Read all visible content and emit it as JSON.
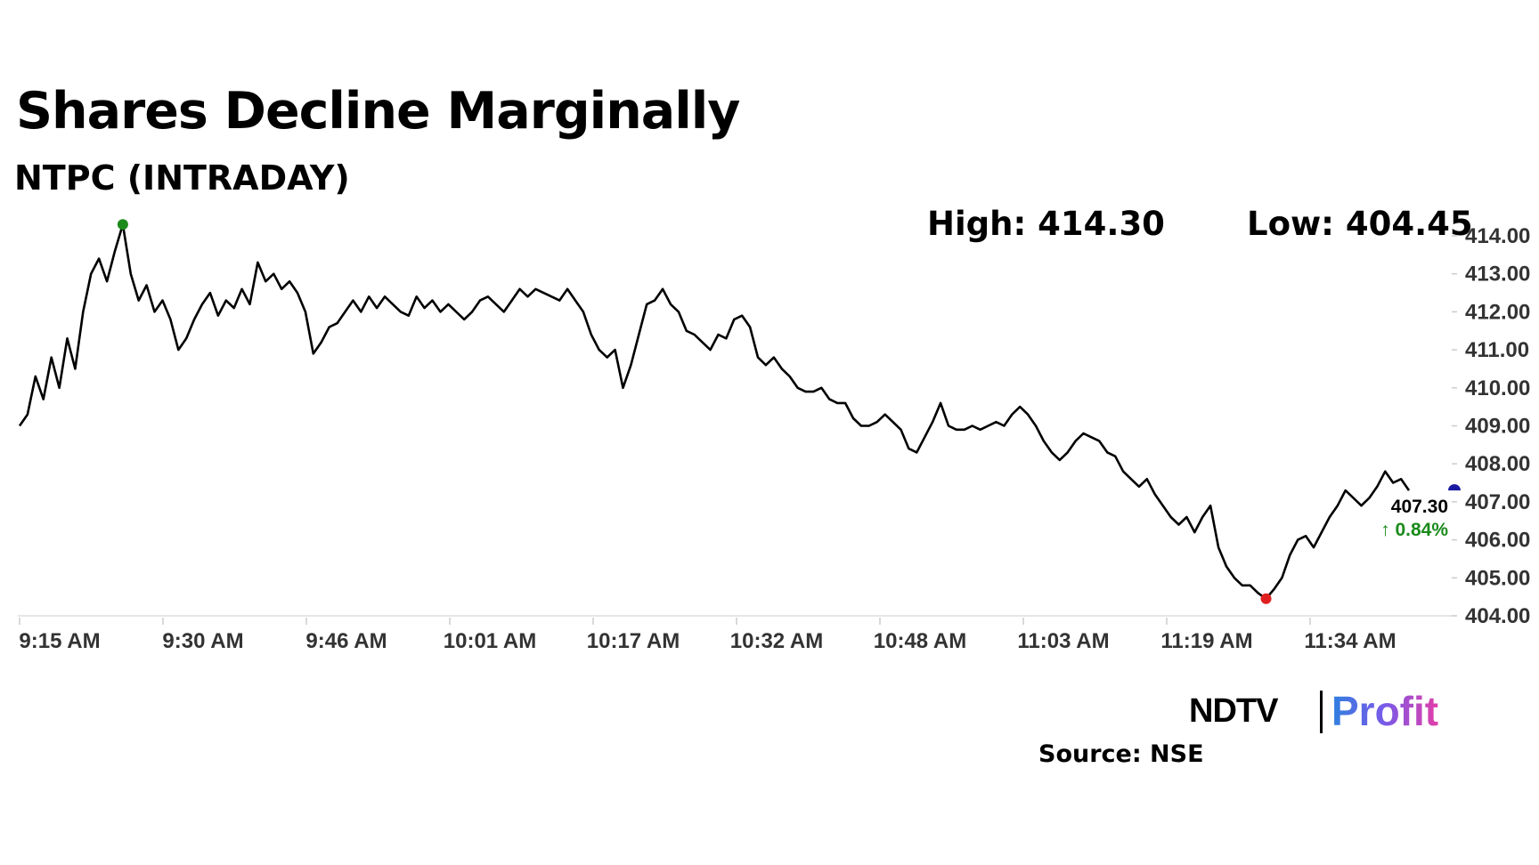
{
  "header": {
    "title": "Shares Decline Marginally",
    "subtitle": "NTPC (INTRADAY)"
  },
  "stats": {
    "high_label": "High: 414.30",
    "low_label": "Low: 404.45"
  },
  "last": {
    "price": "407.30",
    "change": "↑ 0.84%",
    "change_color": "#1a8a1a"
  },
  "colors": {
    "line": "#000000",
    "high_marker": "#1a8a1a",
    "low_marker": "#e02020",
    "last_marker": "#1a1aa0"
  },
  "footer": {
    "source": "Source: NSE",
    "logo_ndtv": "NDTV",
    "logo_profit": "Profit"
  },
  "chart_data": {
    "type": "line",
    "title": "Shares Decline Marginally",
    "subtitle": "NTPC (INTRADAY)",
    "xlabel": "",
    "ylabel": "",
    "ylim": [
      404.0,
      414.0
    ],
    "grid": false,
    "x_tick_labels": [
      "9:15 AM",
      "9:30 AM",
      "9:46 AM",
      "10:01 AM",
      "10:17 AM",
      "10:32 AM",
      "10:48 AM",
      "11:03 AM",
      "11:19 AM",
      "11:34 AM"
    ],
    "y_tick_labels": [
      "414.00",
      "413.00",
      "412.00",
      "411.00",
      "410.00",
      "409.00",
      "408.00",
      "407.00",
      "406.00",
      "405.00",
      "404.00"
    ],
    "high": 414.3,
    "low": 404.45,
    "last": 407.3,
    "change_pct": 0.84,
    "series": [
      {
        "values": [
          [
            0,
            409.0
          ],
          [
            1,
            409.3
          ],
          [
            2,
            410.3
          ],
          [
            3,
            409.7
          ],
          [
            4,
            410.8
          ],
          [
            5,
            410.0
          ],
          [
            6,
            411.3
          ],
          [
            7,
            410.5
          ],
          [
            8,
            412.0
          ],
          [
            9,
            413.0
          ],
          [
            10,
            413.4
          ],
          [
            11,
            412.8
          ],
          [
            12,
            413.6
          ],
          [
            13,
            414.3
          ],
          [
            14,
            413.0
          ],
          [
            15,
            412.3
          ],
          [
            16,
            412.7
          ],
          [
            17,
            412.0
          ],
          [
            18,
            412.3
          ],
          [
            19,
            411.8
          ],
          [
            20,
            411.0
          ],
          [
            21,
            411.3
          ],
          [
            22,
            411.8
          ],
          [
            23,
            412.2
          ],
          [
            24,
            412.5
          ],
          [
            25,
            411.9
          ],
          [
            26,
            412.3
          ],
          [
            27,
            412.1
          ],
          [
            28,
            412.6
          ],
          [
            29,
            412.2
          ],
          [
            30,
            413.3
          ],
          [
            31,
            412.8
          ],
          [
            32,
            413.0
          ],
          [
            33,
            412.6
          ],
          [
            34,
            412.8
          ],
          [
            35,
            412.5
          ],
          [
            36,
            412.0
          ],
          [
            37,
            410.9
          ],
          [
            38,
            411.2
          ],
          [
            39,
            411.6
          ],
          [
            40,
            411.7
          ],
          [
            41,
            412.0
          ],
          [
            42,
            412.3
          ],
          [
            43,
            412.0
          ],
          [
            44,
            412.4
          ],
          [
            45,
            412.1
          ],
          [
            46,
            412.4
          ],
          [
            47,
            412.2
          ],
          [
            48,
            412.0
          ],
          [
            49,
            411.9
          ],
          [
            50,
            412.4
          ],
          [
            51,
            412.1
          ],
          [
            52,
            412.3
          ],
          [
            53,
            412.0
          ],
          [
            54,
            412.2
          ],
          [
            55,
            412.0
          ],
          [
            56,
            411.8
          ],
          [
            57,
            412.0
          ],
          [
            58,
            412.3
          ],
          [
            59,
            412.4
          ],
          [
            60,
            412.2
          ],
          [
            61,
            412.0
          ],
          [
            62,
            412.3
          ],
          [
            63,
            412.6
          ],
          [
            64,
            412.4
          ],
          [
            65,
            412.6
          ],
          [
            66,
            412.5
          ],
          [
            67,
            412.4
          ],
          [
            68,
            412.3
          ],
          [
            69,
            412.6
          ],
          [
            70,
            412.3
          ],
          [
            71,
            412.0
          ],
          [
            72,
            411.4
          ],
          [
            73,
            411.0
          ],
          [
            74,
            410.8
          ],
          [
            75,
            411.0
          ],
          [
            76,
            410.0
          ],
          [
            77,
            410.6
          ],
          [
            78,
            411.4
          ],
          [
            79,
            412.2
          ],
          [
            80,
            412.3
          ],
          [
            81,
            412.6
          ],
          [
            82,
            412.2
          ],
          [
            83,
            412.0
          ],
          [
            84,
            411.5
          ],
          [
            85,
            411.4
          ],
          [
            86,
            411.2
          ],
          [
            87,
            411.0
          ],
          [
            88,
            411.4
          ],
          [
            89,
            411.3
          ],
          [
            90,
            411.8
          ],
          [
            91,
            411.9
          ],
          [
            92,
            411.6
          ],
          [
            93,
            410.8
          ],
          [
            94,
            410.6
          ],
          [
            95,
            410.8
          ],
          [
            96,
            410.5
          ],
          [
            97,
            410.3
          ],
          [
            98,
            410.0
          ],
          [
            99,
            409.9
          ],
          [
            100,
            409.9
          ],
          [
            101,
            410.0
          ],
          [
            102,
            409.7
          ],
          [
            103,
            409.6
          ],
          [
            104,
            409.6
          ],
          [
            105,
            409.2
          ],
          [
            106,
            409.0
          ],
          [
            107,
            409.0
          ],
          [
            108,
            409.1
          ],
          [
            109,
            409.3
          ],
          [
            110,
            409.1
          ],
          [
            111,
            408.9
          ],
          [
            112,
            408.4
          ],
          [
            113,
            408.3
          ],
          [
            114,
            408.7
          ],
          [
            115,
            409.1
          ],
          [
            116,
            409.6
          ],
          [
            117,
            409.0
          ],
          [
            118,
            408.9
          ],
          [
            119,
            408.9
          ],
          [
            120,
            409.0
          ],
          [
            121,
            408.9
          ],
          [
            122,
            409.0
          ],
          [
            123,
            409.1
          ],
          [
            124,
            409.0
          ],
          [
            125,
            409.3
          ],
          [
            126,
            409.5
          ],
          [
            127,
            409.3
          ],
          [
            128,
            409.0
          ],
          [
            129,
            408.6
          ],
          [
            130,
            408.3
          ],
          [
            131,
            408.1
          ],
          [
            132,
            408.3
          ],
          [
            133,
            408.6
          ],
          [
            134,
            408.8
          ],
          [
            135,
            408.7
          ],
          [
            136,
            408.6
          ],
          [
            137,
            408.3
          ],
          [
            138,
            408.2
          ],
          [
            139,
            407.8
          ],
          [
            140,
            407.6
          ],
          [
            141,
            407.4
          ],
          [
            142,
            407.6
          ],
          [
            143,
            407.2
          ],
          [
            144,
            406.9
          ],
          [
            145,
            406.6
          ],
          [
            146,
            406.4
          ],
          [
            147,
            406.6
          ],
          [
            148,
            406.2
          ],
          [
            149,
            406.6
          ],
          [
            150,
            406.9
          ],
          [
            151,
            405.8
          ],
          [
            152,
            405.3
          ],
          [
            153,
            405.0
          ],
          [
            154,
            404.8
          ],
          [
            155,
            404.8
          ],
          [
            156,
            404.6
          ],
          [
            157,
            404.45
          ],
          [
            158,
            404.7
          ],
          [
            159,
            405.0
          ],
          [
            160,
            405.6
          ],
          [
            161,
            406.0
          ],
          [
            162,
            406.1
          ],
          [
            163,
            405.8
          ],
          [
            164,
            406.2
          ],
          [
            165,
            406.6
          ],
          [
            166,
            406.9
          ],
          [
            167,
            407.3
          ],
          [
            168,
            407.1
          ],
          [
            169,
            406.9
          ],
          [
            170,
            407.1
          ],
          [
            171,
            407.4
          ],
          [
            172,
            407.8
          ],
          [
            173,
            407.5
          ],
          [
            174,
            407.6
          ],
          [
            175,
            407.3
          ]
        ]
      }
    ]
  }
}
